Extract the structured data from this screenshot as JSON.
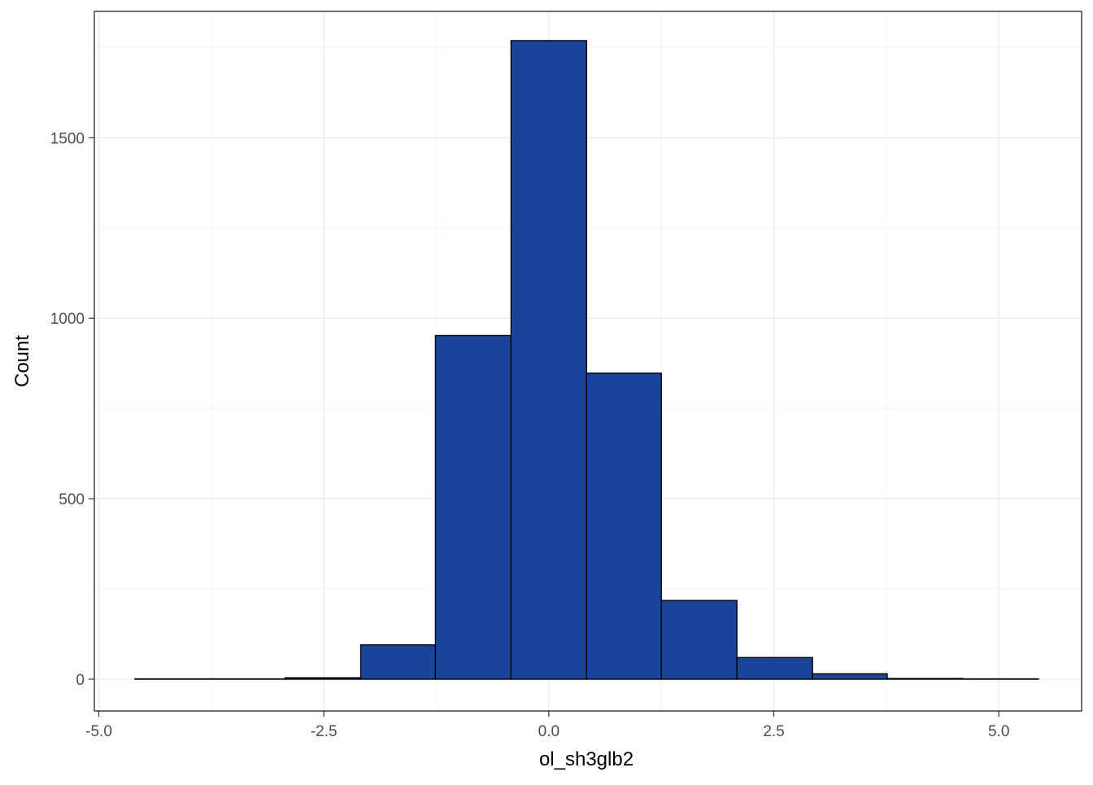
{
  "chart_data": {
    "type": "bar",
    "subtype": "histogram",
    "xlabel": "ol_sh3glb2",
    "ylabel": "Count",
    "xlim": [
      -5.05,
      5.92
    ],
    "ylim": [
      -88,
      1850
    ],
    "x_ticks": [
      -5.0,
      -2.5,
      0.0,
      2.5,
      5.0
    ],
    "x_tick_labels": [
      "-5.0",
      "-2.5",
      "0.0",
      "2.5",
      "5.0"
    ],
    "y_ticks": [
      0,
      500,
      1000,
      1500
    ],
    "y_tick_labels": [
      "0",
      "500",
      "1000",
      "1500"
    ],
    "bins": [
      {
        "x0": -4.6,
        "x1": -3.76,
        "count": 1
      },
      {
        "x0": -3.76,
        "x1": -2.93,
        "count": 1
      },
      {
        "x0": -2.93,
        "x1": -2.09,
        "count": 4
      },
      {
        "x0": -2.09,
        "x1": -1.26,
        "count": 95
      },
      {
        "x0": -1.26,
        "x1": -0.42,
        "count": 952
      },
      {
        "x0": -0.42,
        "x1": 0.42,
        "count": 1769
      },
      {
        "x0": 0.42,
        "x1": 1.25,
        "count": 848
      },
      {
        "x0": 1.25,
        "x1": 2.09,
        "count": 218
      },
      {
        "x0": 2.09,
        "x1": 2.93,
        "count": 60
      },
      {
        "x0": 2.93,
        "x1": 3.76,
        "count": 15
      },
      {
        "x0": 3.76,
        "x1": 4.6,
        "count": 2
      },
      {
        "x0": 4.6,
        "x1": 5.44,
        "count": 1
      }
    ],
    "grid": true,
    "bar_fill": "#1a4499",
    "bar_outline": "#000000"
  }
}
